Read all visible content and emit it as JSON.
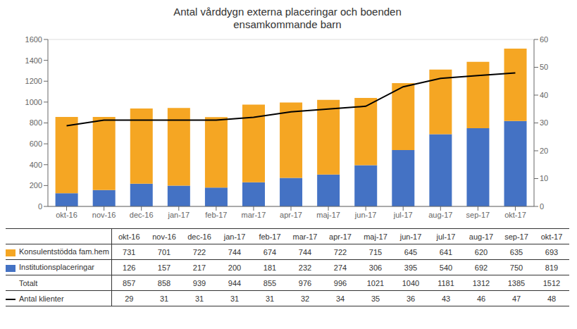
{
  "chart_data": {
    "type": "bar",
    "title": "Antal vårddygn externa placeringar och boenden\nensamkommande barn",
    "categories": [
      "okt-16",
      "nov-16",
      "dec-16",
      "jan-17",
      "feb-17",
      "mar-17",
      "apr-17",
      "maj-17",
      "jun-17",
      "jul-17",
      "aug-17",
      "sep-17",
      "okt-17"
    ],
    "series": [
      {
        "name": "Institutionsplaceringar",
        "type": "bar",
        "color": "#4472C4",
        "values": [
          126,
          157,
          217,
          200,
          181,
          232,
          274,
          306,
          395,
          540,
          692,
          750,
          819
        ]
      },
      {
        "name": "Konsulentstödda fam.hem",
        "type": "bar",
        "color": "#F5A623",
        "values": [
          731,
          701,
          722,
          744,
          674,
          744,
          722,
          715,
          645,
          641,
          620,
          635,
          693
        ]
      },
      {
        "name": "Antal klienter",
        "type": "line",
        "axis": "y2",
        "color": "#000000",
        "values": [
          29,
          31,
          31,
          31,
          31,
          32,
          34,
          35,
          36,
          43,
          46,
          47,
          48
        ]
      }
    ],
    "totals": {
      "name": "Totalt",
      "values": [
        857,
        858,
        939,
        944,
        855,
        976,
        996,
        1021,
        1040,
        1181,
        1312,
        1385,
        1512
      ]
    },
    "stacked": true,
    "grid": true,
    "ylim": [
      0,
      1600
    ],
    "yticks": [
      0,
      200,
      400,
      600,
      800,
      1000,
      1200,
      1400,
      1600
    ],
    "y2lim": [
      0,
      60
    ],
    "y2ticks": [
      0,
      10,
      20,
      30,
      40,
      50,
      60
    ]
  }
}
